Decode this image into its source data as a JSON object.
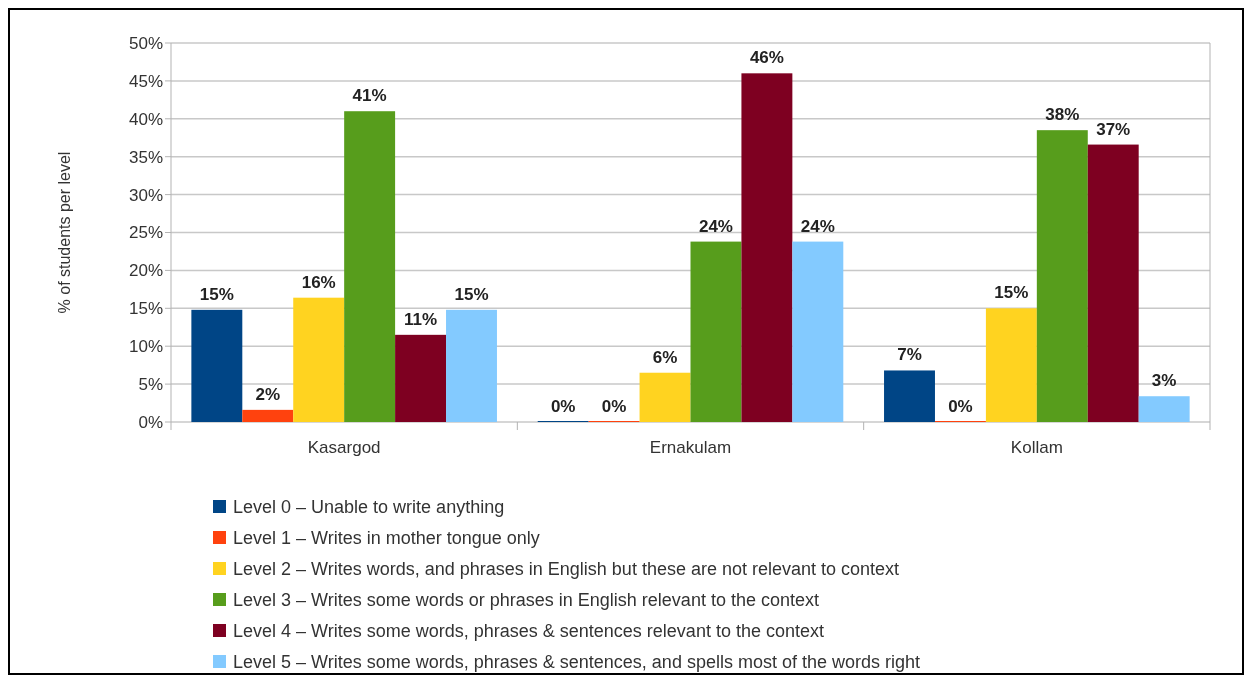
{
  "chart_data": {
    "type": "bar",
    "ylabel": "% of students per level",
    "categories": [
      "Kasargod",
      "Ernakulam",
      "Kollam"
    ],
    "series": [
      {
        "name": "Level 0 – Unable to write anything",
        "color": "#004586",
        "values": [
          14.8,
          0,
          6.8
        ],
        "value_labels": [
          "15%",
          "0%",
          "7%"
        ]
      },
      {
        "name": "Level 1 – Writes in mother tongue only",
        "color": "#ff420e",
        "values": [
          1.6,
          0,
          0
        ],
        "value_labels": [
          "2%",
          "0%",
          "0%"
        ]
      },
      {
        "name": "Level 2 – Writes words, and phrases in English but these are not relevant to context",
        "color": "#ffd320",
        "values": [
          16.4,
          6.5,
          15
        ],
        "value_labels": [
          "16%",
          "6%",
          "15%"
        ]
      },
      {
        "name": "Level 3 – Writes some words or phrases in English relevant to the context",
        "color": "#579d1c",
        "values": [
          41,
          23.8,
          38.5
        ],
        "value_labels": [
          "41%",
          "24%",
          "38%"
        ]
      },
      {
        "name": "Level 4 – Writes some words, phrases & sentences relevant to the context",
        "color": "#7e0021",
        "values": [
          11.5,
          46,
          36.6
        ],
        "value_labels": [
          "11%",
          "46%",
          "37%"
        ]
      },
      {
        "name": "Level 5 – Writes some words, phrases & sentences, and spells most of the words right",
        "color": "#83caff",
        "values": [
          14.8,
          23.8,
          3.4
        ],
        "value_labels": [
          "15%",
          "24%",
          "3%"
        ]
      }
    ],
    "ylim": [
      0,
      50
    ],
    "yticks": [
      {
        "value": 0,
        "label": "0%"
      },
      {
        "value": 5,
        "label": "5%"
      },
      {
        "value": 10,
        "label": "10%"
      },
      {
        "value": 15,
        "label": "15%"
      },
      {
        "value": 20,
        "label": "20%"
      },
      {
        "value": 25,
        "label": "25%"
      },
      {
        "value": 30,
        "label": "30%"
      },
      {
        "value": 35,
        "label": "35%"
      },
      {
        "value": 40,
        "label": "40%"
      },
      {
        "value": 45,
        "label": "45%"
      },
      {
        "value": 50,
        "label": "50%"
      }
    ],
    "grid": "y",
    "legend": "bottom"
  }
}
